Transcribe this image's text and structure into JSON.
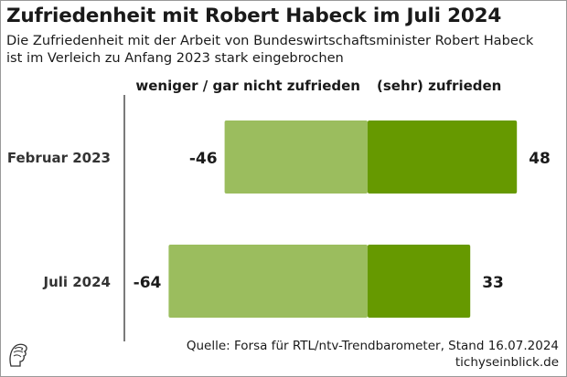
{
  "title": "Zufriedenheit mit Robert Habeck im Juli 2024",
  "subtitle_lines": [
    "Die Zufriedenheit mit der Arbeit von Bundeswirtschaftsminister Robert Habeck",
    "ist im Verleich zu Anfang 2023 stark eingebrochen"
  ],
  "source_line": "Quelle: Forsa für RTL/ntv-Trendbarometer, Stand 16.07.2024",
  "brand": "tichyseinblick.de",
  "colors": {
    "negative": "#9bbd5e",
    "positive": "#669900",
    "axis": "#333333",
    "text": "#1a1a1a"
  },
  "chart_data": {
    "type": "bar",
    "orientation": "horizontal",
    "stacked": "diverging",
    "categories": [
      "Februar 2023",
      "Juli 2024"
    ],
    "series": [
      {
        "name": "weniger / gar nicht zufrieden",
        "values": [
          -46,
          -64
        ]
      },
      {
        "name": "(sehr) zufrieden",
        "values": [
          48,
          33
        ]
      }
    ],
    "value_labels": [
      [
        "-46",
        "48"
      ],
      [
        "-64",
        "33"
      ]
    ],
    "legend_position": "top",
    "grid": false
  }
}
